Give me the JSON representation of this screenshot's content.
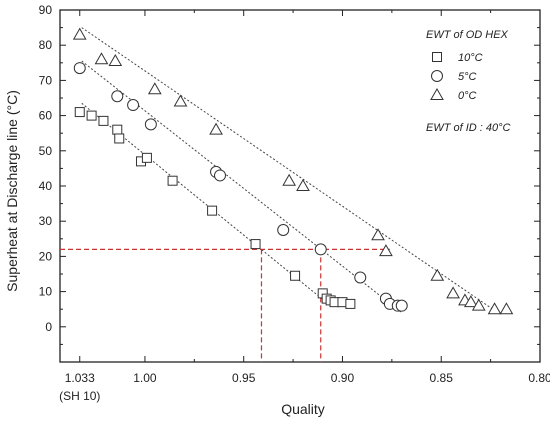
{
  "chart_data": {
    "type": "scatter",
    "xlabel": "Quality",
    "ylabel": "Superheat at Discharge line (°C)",
    "xlim": [
      1.043,
      0.8
    ],
    "ylim": [
      -10,
      90
    ],
    "x_reversed": true,
    "x_ticks": [
      {
        "value": 1.033,
        "label": "1.033"
      },
      {
        "value": 1.0,
        "label": "1.00"
      },
      {
        "value": 0.95,
        "label": "0.95"
      },
      {
        "value": 0.9,
        "label": "0.90"
      },
      {
        "value": 0.85,
        "label": "0.85"
      },
      {
        "value": 0.8,
        "label": "0.80"
      }
    ],
    "x_tick_sublabel": {
      "value": 1.033,
      "label": "(SH 10)"
    },
    "y_ticks": [
      0,
      10,
      20,
      30,
      40,
      50,
      60,
      70,
      80,
      90
    ],
    "grid": false,
    "legend": {
      "title": "EWT of OD HEX",
      "position": "top-right",
      "entries": [
        {
          "marker": "square",
          "label": "10°C"
        },
        {
          "marker": "circle",
          "label": "5°C"
        },
        {
          "marker": "triangle",
          "label": "0°C"
        }
      ]
    },
    "annotation": "EWT of ID : 40°C",
    "series": [
      {
        "name": "10°C",
        "marker": "square",
        "points": [
          [
            1.033,
            61
          ],
          [
            1.027,
            60
          ],
          [
            1.021,
            58.5
          ],
          [
            1.014,
            56
          ],
          [
            1.013,
            53.5
          ],
          [
            1.002,
            47
          ],
          [
            0.999,
            48
          ],
          [
            0.986,
            41.5
          ],
          [
            0.966,
            33
          ],
          [
            0.944,
            23.5
          ],
          [
            0.924,
            14.5
          ],
          [
            0.91,
            9.5
          ],
          [
            0.908,
            8
          ],
          [
            0.906,
            7.5
          ],
          [
            0.904,
            7
          ],
          [
            0.9,
            7
          ],
          [
            0.896,
            6.5
          ]
        ]
      },
      {
        "name": "5°C",
        "marker": "circle",
        "points": [
          [
            1.033,
            73.5
          ],
          [
            1.014,
            65.5
          ],
          [
            1.006,
            63
          ],
          [
            0.997,
            57.5
          ],
          [
            0.964,
            44
          ],
          [
            0.962,
            43
          ],
          [
            0.93,
            27.5
          ],
          [
            0.911,
            22
          ],
          [
            0.891,
            14
          ],
          [
            0.878,
            8
          ],
          [
            0.876,
            6.5
          ],
          [
            0.872,
            6
          ],
          [
            0.87,
            6
          ]
        ]
      },
      {
        "name": "0°C",
        "marker": "triangle",
        "points": [
          [
            1.033,
            83
          ],
          [
            1.022,
            76
          ],
          [
            1.015,
            75.5
          ],
          [
            0.995,
            67.5
          ],
          [
            0.982,
            64
          ],
          [
            0.964,
            56
          ],
          [
            0.927,
            41.5
          ],
          [
            0.92,
            40
          ],
          [
            0.882,
            26
          ],
          [
            0.878,
            21.5
          ],
          [
            0.852,
            14.5
          ],
          [
            0.844,
            9.5
          ],
          [
            0.838,
            7.5
          ],
          [
            0.835,
            7
          ],
          [
            0.831,
            6
          ],
          [
            0.823,
            5
          ],
          [
            0.817,
            5
          ]
        ]
      }
    ],
    "trend_lines": [
      {
        "series": "10°C",
        "from": [
          1.032,
          63.5
        ],
        "to": [
          0.905,
          5.5
        ]
      },
      {
        "series": "5°C",
        "from": [
          1.032,
          75.5
        ],
        "to": [
          0.87,
          4
        ]
      },
      {
        "series": "0°C",
        "from": [
          1.032,
          85
        ],
        "to": [
          0.82,
          3.5
        ]
      }
    ],
    "reference_lines": {
      "y": 22,
      "x": [
        0.941,
        0.911
      ],
      "x_start": 1.043,
      "x_end": 0.876,
      "color": "#cc3333"
    }
  }
}
